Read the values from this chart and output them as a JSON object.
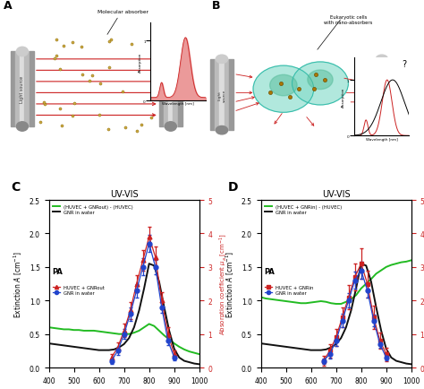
{
  "wavelengths": [
    400,
    420,
    440,
    460,
    480,
    500,
    520,
    540,
    560,
    580,
    600,
    620,
    640,
    660,
    680,
    700,
    720,
    740,
    760,
    780,
    800,
    820,
    840,
    860,
    880,
    900,
    920,
    940,
    960,
    980,
    1000
  ],
  "gnr_water_extinction": [
    0.36,
    0.35,
    0.34,
    0.33,
    0.32,
    0.31,
    0.3,
    0.29,
    0.28,
    0.27,
    0.26,
    0.26,
    0.26,
    0.27,
    0.3,
    0.35,
    0.44,
    0.6,
    0.85,
    1.18,
    1.55,
    1.52,
    1.28,
    0.9,
    0.55,
    0.28,
    0.15,
    0.1,
    0.08,
    0.06,
    0.05
  ],
  "huvec_gnrout_extinction": [
    0.6,
    0.59,
    0.58,
    0.57,
    0.57,
    0.56,
    0.56,
    0.55,
    0.55,
    0.55,
    0.54,
    0.53,
    0.52,
    0.51,
    0.5,
    0.5,
    0.5,
    0.52,
    0.55,
    0.6,
    0.65,
    0.62,
    0.55,
    0.48,
    0.42,
    0.36,
    0.31,
    0.27,
    0.24,
    0.22,
    0.2
  ],
  "huvec_gnrin_extinction": [
    1.05,
    1.03,
    1.02,
    1.01,
    1.0,
    0.99,
    0.98,
    0.97,
    0.96,
    0.96,
    0.97,
    0.98,
    0.99,
    0.98,
    0.96,
    0.95,
    0.95,
    0.98,
    1.02,
    1.08,
    1.18,
    1.25,
    1.32,
    1.4,
    1.45,
    1.5,
    1.53,
    1.55,
    1.57,
    1.58,
    1.6
  ],
  "pa_wavelengths_C": [
    650,
    675,
    700,
    725,
    750,
    775,
    800,
    825,
    850,
    875,
    900
  ],
  "pa_huvec_gnrout": [
    0.3,
    0.6,
    1.1,
    1.7,
    2.5,
    3.2,
    3.9,
    3.3,
    2.0,
    1.0,
    0.4
  ],
  "pa_huvec_gnrout_err": [
    0.1,
    0.15,
    0.2,
    0.25,
    0.25,
    0.3,
    0.3,
    0.3,
    0.25,
    0.2,
    0.1
  ],
  "pa_gnr_water_C_vals": [
    0.2,
    0.5,
    1.0,
    1.6,
    2.3,
    3.0,
    3.7,
    3.0,
    1.8,
    0.8,
    0.3
  ],
  "pa_gnr_water_C_err": [
    0.08,
    0.12,
    0.15,
    0.2,
    0.2,
    0.25,
    0.25,
    0.22,
    0.18,
    0.12,
    0.08
  ],
  "pa_wavelengths_D": [
    650,
    675,
    700,
    725,
    750,
    775,
    800,
    825,
    850,
    875,
    900
  ],
  "pa_huvec_gnrin": [
    0.2,
    0.5,
    0.9,
    1.5,
    2.1,
    2.7,
    3.1,
    2.5,
    1.5,
    0.8,
    0.4
  ],
  "pa_huvec_gnrin_err": [
    0.15,
    0.2,
    0.25,
    0.3,
    0.35,
    0.4,
    0.45,
    0.4,
    0.35,
    0.25,
    0.2
  ],
  "pa_gnr_water_D_vals": [
    0.2,
    0.4,
    0.8,
    1.4,
    2.0,
    2.6,
    2.9,
    2.3,
    1.4,
    0.7,
    0.3
  ],
  "pa_gnr_water_D_err": [
    0.08,
    0.12,
    0.15,
    0.2,
    0.22,
    0.25,
    0.25,
    0.22,
    0.18,
    0.12,
    0.08
  ],
  "color_green": "#22bb22",
  "color_black": "#111111",
  "color_red": "#cc2222",
  "color_blue": "#2244cc",
  "color_bg": "#f0f0f0",
  "xlim": [
    400,
    1000
  ],
  "ylim_ext": [
    0.0,
    2.5
  ],
  "ylim_pa": [
    0.0,
    5.0
  ],
  "title_C": "UV-VIS",
  "title_D": "UV-VIS",
  "legend_C_uvvis_1": "(HUVEC + GNRout) - (HUVEC)",
  "legend_C_uvvis_2": "GNR in water",
  "legend_C_pa_1": "HUVEC + GNRout",
  "legend_C_pa_2": "GNR in water",
  "legend_D_uvvis_1": "(HUVEC + GNRin) - (HUVEC)",
  "legend_D_uvvis_2": "GNR in water",
  "legend_D_pa_1": "HUVEC + GNRin",
  "legend_D_pa_2": "GNR in water"
}
